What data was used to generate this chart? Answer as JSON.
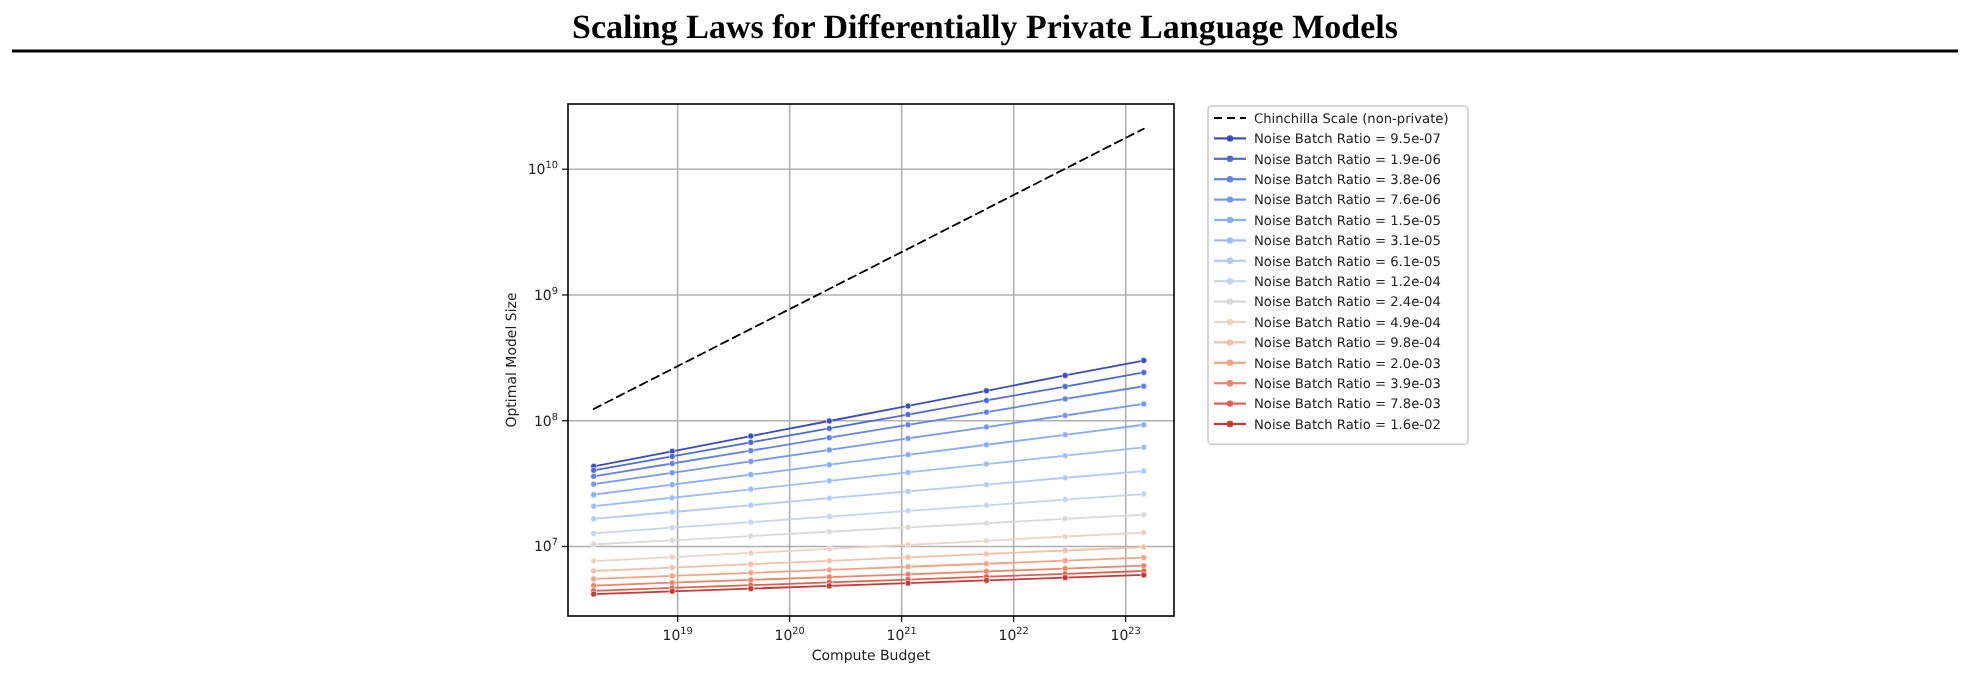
{
  "chart_data": {
    "type": "line",
    "title": "Scaling Laws for Differentially Private Language Models",
    "xlabel": "Compute Budget",
    "ylabel": "Optimal Model Size",
    "log": "xy",
    "grid": true,
    "legend": "right",
    "xlim": [
      1.05e+18,
      2.7e+23
    ],
    "ylim": [
      2800000.0,
      33000000000.0
    ],
    "xticks": [
      {
        "value": 1e+19,
        "label": "10$^{19}$"
      },
      {
        "value": 1e+20,
        "label": "10$^{20}$"
      },
      {
        "value": 1e+21,
        "label": "10$^{21}$"
      },
      {
        "value": 1e+22,
        "label": "10$^{22}$"
      },
      {
        "value": 1e+23,
        "label": "10$^{23}$"
      }
    ],
    "yticks": [
      {
        "value": 10000000.0,
        "label": "10$^{7}$"
      },
      {
        "value": 100000000.0,
        "label": "10$^{8}$"
      },
      {
        "value": 1000000000.0,
        "label": "10$^{9}$"
      },
      {
        "value": 10000000000.0,
        "label": "10$^{10}$"
      }
    ],
    "x": [
      1.78e+18,
      8.94e+18,
      4.5e+19,
      2.26e+20,
      1.14e+21,
      5.71e+21,
      2.88e+22,
      1.45e+23
    ],
    "series": [
      {
        "name": "Chinchilla Scale (non-private)",
        "color": "#000000",
        "line_style": "dashed",
        "marker": "none",
        "x": [
          1.78e+18,
          1.45e+23
        ],
        "values": [
          124000000.0,
          21000000000.0
        ]
      },
      {
        "name": "Noise Batch Ratio = 9.5e-07",
        "color": "#3b4cc0",
        "marker": "circle",
        "values": [
          43400000.0,
          57100000.0,
          75500000.0,
          99500000.0,
          131000000.0,
          173000000.0,
          229000000.0,
          301000000.0
        ]
      },
      {
        "name": "Noise Batch Ratio = 1.9e-06",
        "color": "#4f69d9",
        "marker": "circle",
        "values": [
          40300000.0,
          52000000.0,
          67300000.0,
          86900000.0,
          112000000.0,
          145000000.0,
          187000000.0,
          242000000.0
        ]
      },
      {
        "name": "Noise Batch Ratio = 3.8e-06",
        "color": "#6282ea",
        "marker": "circle",
        "values": [
          36100000.0,
          45700000.0,
          57800000.0,
          73300000.0,
          92700000.0,
          117000000.0,
          149000000.0,
          188000000.0
        ]
      },
      {
        "name": "Noise Batch Ratio = 7.6e-06",
        "color": "#7597f6",
        "marker": "circle",
        "values": [
          31300000.0,
          38500000.0,
          47500000.0,
          58600000.0,
          72300000.0,
          89100000.0,
          110000000.0,
          136000000.0
        ]
      },
      {
        "name": "Noise Batch Ratio = 1.5e-05",
        "color": "#89acfd",
        "marker": "circle",
        "values": [
          25800000.0,
          31000000.0,
          37200000.0,
          44700000.0,
          53600000.0,
          64400000.0,
          77300000.0,
          92900000.0
        ]
      },
      {
        "name": "Noise Batch Ratio = 3.1e-05",
        "color": "#9dbdff",
        "marker": "circle",
        "values": [
          20900000.0,
          24400000.0,
          28500000.0,
          33300000.0,
          38800000.0,
          45200000.0,
          52700000.0,
          61500000.0
        ]
      },
      {
        "name": "Noise Batch Ratio = 6.1e-05",
        "color": "#b1cbfc",
        "marker": "circle",
        "values": [
          16600000.0,
          18800000.0,
          21300000.0,
          24200000.0,
          27400000.0,
          31000000.0,
          35200000.0,
          39800000.0
        ]
      },
      {
        "name": "Noise Batch Ratio = 1.2e-04",
        "color": "#c4d5f3",
        "marker": "circle",
        "values": [
          12700000.0,
          14100000.0,
          15600000.0,
          17300000.0,
          19200000.0,
          21200000.0,
          23600000.0,
          26100000.0
        ]
      },
      {
        "name": "Noise Batch Ratio = 2.4e-04",
        "color": "#dcd9d6",
        "marker": "circle",
        "values": [
          10400000.0,
          11200000.0,
          12100000.0,
          13100000.0,
          14200000.0,
          15300000.0,
          16600000.0,
          17900000.0
        ]
      },
      {
        "name": "Noise Batch Ratio = 4.9e-04",
        "color": "#ecd3c5",
        "marker": "circle",
        "values": [
          7660000.0,
          8240000.0,
          8890000.0,
          9570000.0,
          10300000.0,
          11100000.0,
          12000000.0,
          12900000.0
        ]
      },
      {
        "name": "Noise Batch Ratio = 9.8e-04",
        "color": "#f5c0a7",
        "marker": "circle",
        "values": [
          6380000.0,
          6790000.0,
          7230000.0,
          7690000.0,
          8200000.0,
          8730000.0,
          9290000.0,
          9890000.0
        ]
      },
      {
        "name": "Noise Batch Ratio = 2.0e-03",
        "color": "#f6a385",
        "marker": "circle",
        "values": [
          5520000.0,
          5830000.0,
          6170000.0,
          6520000.0,
          6900000.0,
          7290000.0,
          7710000.0,
          8150000.0
        ]
      },
      {
        "name": "Noise Batch Ratio = 3.9e-03",
        "color": "#ee8468",
        "marker": "circle",
        "values": [
          4890000.0,
          5150000.0,
          5420000.0,
          5710000.0,
          6010000.0,
          6340000.0,
          6670000.0,
          7030000.0
        ]
      },
      {
        "name": "Noise Batch Ratio = 7.8e-03",
        "color": "#de614d",
        "marker": "circle",
        "values": [
          4440000.0,
          4680000.0,
          4920000.0,
          5190000.0,
          5460000.0,
          5750000.0,
          6050000.0,
          6380000.0
        ]
      },
      {
        "name": "Noise Batch Ratio = 1.6e-02",
        "color": "#c83836",
        "marker": "circle",
        "values": [
          4180000.0,
          4400000.0,
          4620000.0,
          4860000.0,
          5110000.0,
          5370000.0,
          5650000.0,
          5940000.0
        ]
      }
    ]
  }
}
